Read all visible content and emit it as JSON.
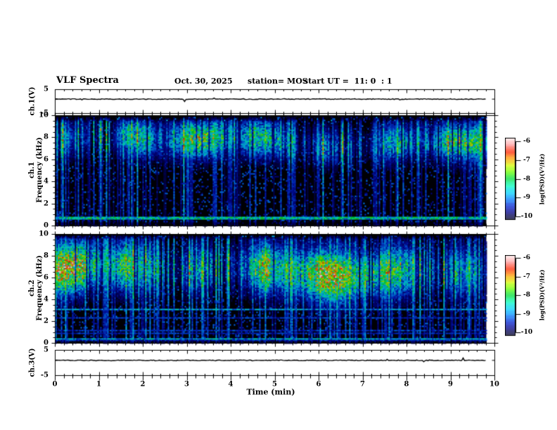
{
  "header": {
    "title": "VLF Spectra",
    "date": "Oct. 30, 2025",
    "station": "station= MOS",
    "start_ut": "start UT =  11: 0  : 1"
  },
  "xaxis": {
    "label": "Time (min)",
    "tick_labels": [
      "0",
      "1",
      "2",
      "3",
      "4",
      "5",
      "6",
      "7",
      "8",
      "9",
      "10"
    ],
    "range_min": [
      0,
      10
    ]
  },
  "colorbar": {
    "tick_labels": [
      "-6",
      "-7",
      "-8",
      "-9",
      "-10"
    ],
    "label": "log(PSD)(V²/Hz)",
    "range_log_psd": [
      -10,
      -6
    ]
  },
  "colors": {
    "background": "#ffffff",
    "axis": "#000000",
    "colormap_low_to_high": [
      "#000018",
      "#000080",
      "#0020d0",
      "#0080ff",
      "#00d0ff",
      "#00ffc0",
      "#00e040",
      "#60ff00",
      "#d8ff00",
      "#ffa000",
      "#ff2800",
      "#ff9090",
      "#fff4f4"
    ]
  },
  "chart_data": [
    {
      "id": "ch1_voltage",
      "type": "line",
      "ylabel": "ch.1(V)",
      "ylim": [
        -5,
        5
      ],
      "ytick_labels": [
        "5",
        "-5"
      ],
      "x_range_min": [
        0,
        10
      ],
      "data_end_min": 9.8,
      "signal": "flat near 0 V with sparse tiny impulses"
    },
    {
      "id": "ch1_spectrogram",
      "type": "heatmap",
      "ylabel_lines": [
        "ch.1",
        "Frequency (kHz)"
      ],
      "ylim": [
        0,
        10
      ],
      "ytick_labels": [
        "10",
        "8",
        "6",
        "4",
        "2",
        "0"
      ],
      "x_range_min": [
        0,
        10
      ],
      "data_end_min": 9.8,
      "clim_log_psd": [
        -10,
        -6
      ],
      "main_band_khz": [
        5.5,
        9.3
      ],
      "band_center_khz": 7.7,
      "quiet_above_khz": 9.45,
      "horizontal_lines_khz": [
        0.65,
        1.6,
        1.85
      ],
      "texture": "dense vertical sferic streaks, cyan-green with sparse red cores on black"
    },
    {
      "id": "ch2_spectrogram",
      "type": "heatmap",
      "ylabel_lines": [
        "ch.2",
        "Frequency (kHz)"
      ],
      "ylim": [
        0,
        10
      ],
      "ytick_labels": [
        "10",
        "8",
        "6",
        "4",
        "2",
        "0"
      ],
      "x_range_min": [
        0,
        10
      ],
      "data_end_min": 9.8,
      "clim_log_psd": [
        -10,
        -6
      ],
      "main_band_khz": [
        4.5,
        9.0
      ],
      "band_center_khz": 6.7,
      "quiet_above_khz": 9.55,
      "horizontal_lines_khz": [
        0.35,
        0.9,
        1.15,
        2.35,
        3.05
      ],
      "texture": "dense vertical sferic streaks, green-yellow with orange-red cores on black"
    },
    {
      "id": "ch3_voltage",
      "type": "line",
      "ylabel": "ch.3(V)",
      "ylim": [
        -5,
        5
      ],
      "ytick_labels": [
        "5",
        "-5"
      ],
      "x_range_min": [
        0,
        10
      ],
      "data_end_min": 9.8,
      "signal": "flat near 0 V with sparse tiny impulses"
    }
  ]
}
